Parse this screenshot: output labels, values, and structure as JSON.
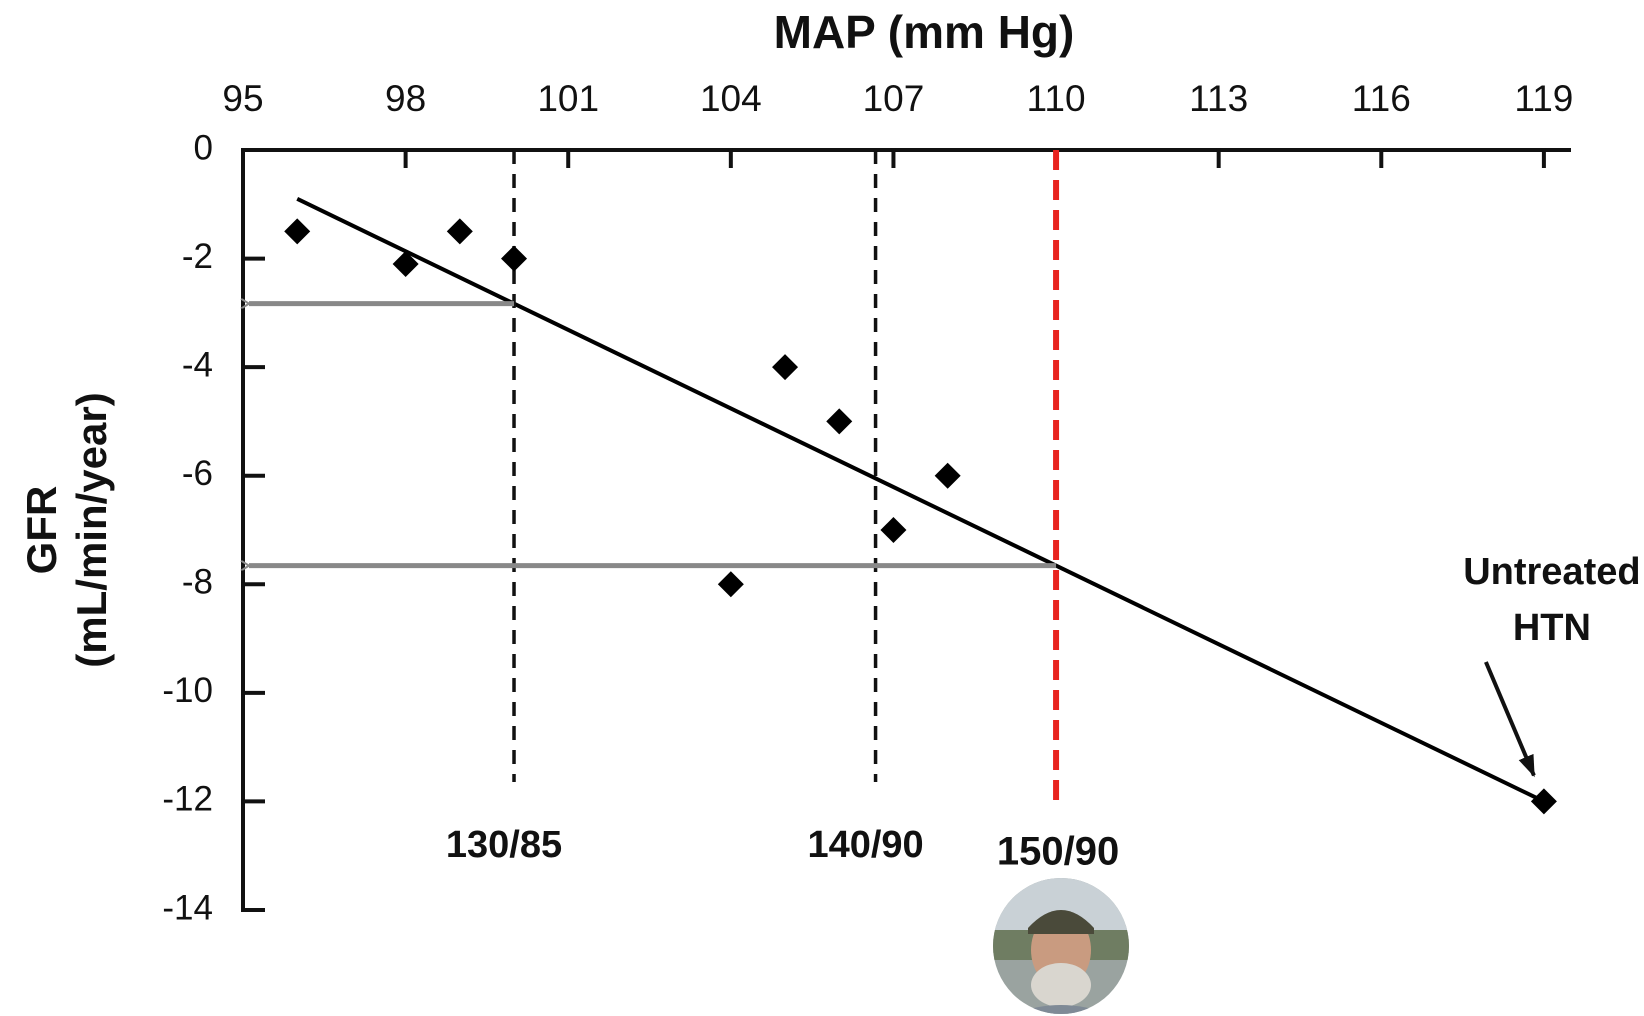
{
  "chart_data": {
    "type": "scatter",
    "title": "MAP (mm Hg)",
    "ylabel": [
      "GFR",
      "(mL/min/year)"
    ],
    "xlim": [
      95,
      119.5
    ],
    "xticks": [
      95,
      98,
      101,
      104,
      107,
      110,
      113,
      116,
      119
    ],
    "ylim": [
      -14,
      0
    ],
    "yticks": [
      0,
      -2,
      -4,
      -6,
      -8,
      -10,
      -12,
      -14
    ],
    "x": [
      96,
      98,
      99,
      100,
      104,
      105,
      106,
      107,
      108,
      119
    ],
    "values": [
      -1.5,
      -2.1,
      -1.5,
      -2,
      -8,
      -4,
      -5,
      -7,
      -6,
      -12
    ],
    "color": "#000000",
    "trendline": {
      "x": [
        96,
        119
      ],
      "values": [
        -0.9,
        -12
      ],
      "color": "#000000"
    },
    "reference_lines": [
      {
        "x": 100,
        "label": "130/85",
        "color": "#111111",
        "arrow": true
      },
      {
        "x": 106.67,
        "label": "140/90",
        "color": "#111111",
        "arrow": false
      },
      {
        "x": 110,
        "label": "150/90",
        "color": "#e8231f",
        "arrow": true
      }
    ],
    "annotation": [
      "Untreated",
      "HTN"
    ]
  }
}
